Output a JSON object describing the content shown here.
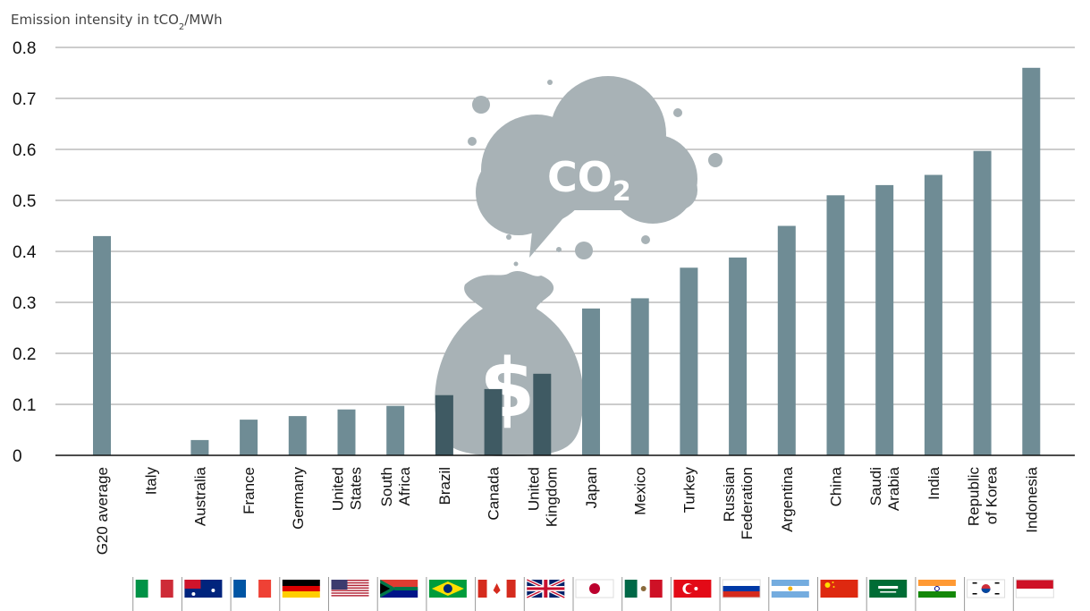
{
  "chart_data": {
    "type": "bar",
    "ylabel_html": "Emission intensity in tCO<tspan baseline-shift='sub' font-size='10'>2</tspan>/MWh",
    "ylabel_parts": [
      "Emission intensity in tCO",
      "2",
      "/MWh"
    ],
    "ylim": [
      0,
      0.8
    ],
    "yticks": [
      "0",
      "0.1",
      "0.2",
      "0.3",
      "0.4",
      "0.5",
      "0.6",
      "0.7",
      "0.8"
    ],
    "grid": true,
    "categories": [
      [
        "G20 average"
      ],
      [
        "Italy"
      ],
      [
        "Australia"
      ],
      [
        "France"
      ],
      [
        "Germany"
      ],
      [
        "United",
        "States"
      ],
      [
        "South",
        "Africa"
      ],
      [
        "Brazil"
      ],
      [
        "Canada"
      ],
      [
        "United",
        "Kingdom"
      ],
      [
        "Japan"
      ],
      [
        "Mexico"
      ],
      [
        "Turkey"
      ],
      [
        "Russian",
        "Federation"
      ],
      [
        "Argentina"
      ],
      [
        "China"
      ],
      [
        "Saudi",
        "Arabia"
      ],
      [
        "India"
      ],
      [
        "Republic",
        "of Korea"
      ],
      [
        "Indonesia"
      ]
    ],
    "values": [
      0.43,
      0,
      0.03,
      0.07,
      0.077,
      0.09,
      0.097,
      0.118,
      0.13,
      0.16,
      0.288,
      0.308,
      0.368,
      0.388,
      0.45,
      0.51,
      0.53,
      0.55,
      0.597,
      0.76
    ],
    "bar_color": "#6f8c95",
    "flags": [
      "italy-flag",
      "australia-flag",
      "france-flag",
      "germany-flag",
      "united-states-flag",
      "south-africa-flag",
      "brazil-flag",
      "canada-flag",
      "united-kingdom-flag",
      "japan-flag",
      "mexico-flag",
      "turkey-flag",
      "russia-flag",
      "argentina-flag",
      "china-flag",
      "saudi-arabia-flag",
      "india-flag",
      "south-korea-flag",
      "indonesia-flag"
    ]
  },
  "illustration": {
    "cloud_label": "CO",
    "cloud_sub": "2",
    "bag_label": "$"
  }
}
